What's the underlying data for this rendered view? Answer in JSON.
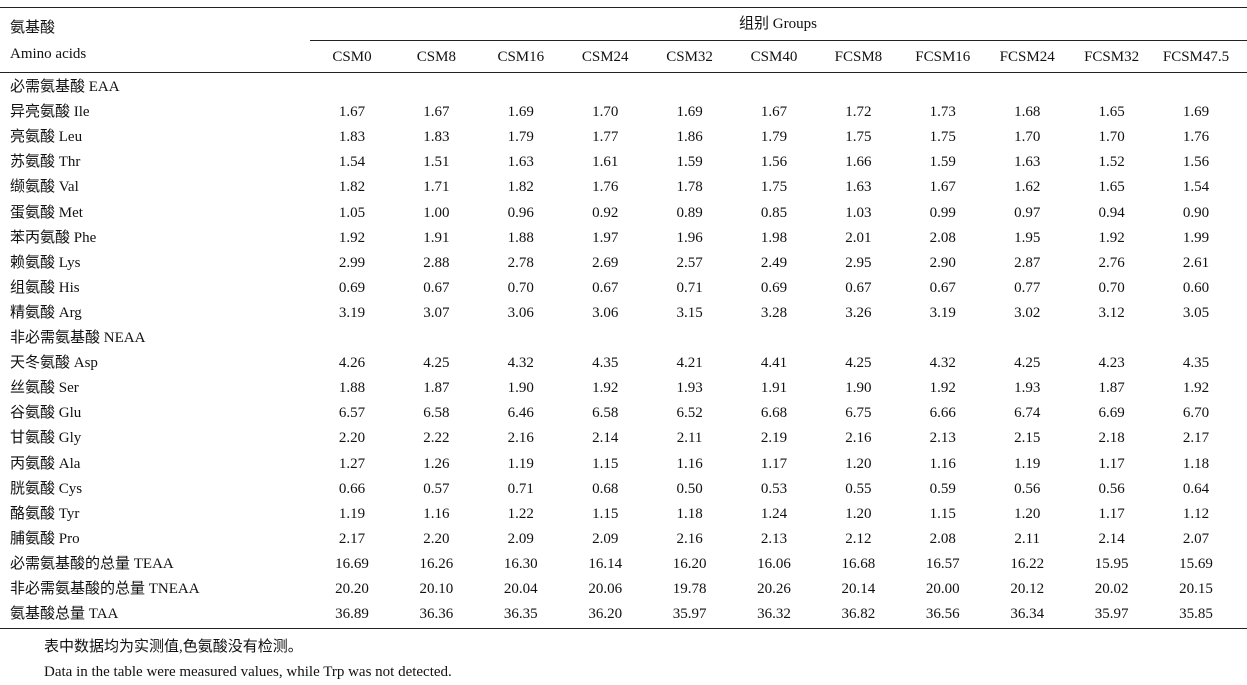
{
  "table": {
    "header": {
      "row_label": [
        "氨基酸",
        "Amino acids"
      ],
      "group": "组别 Groups",
      "columns": [
        "CSM0",
        "CSM8",
        "CSM16",
        "CSM24",
        "CSM32",
        "CSM40",
        "FCSM8",
        "FCSM16",
        "FCSM24",
        "FCSM32",
        "FCSM47.5"
      ]
    },
    "rows": [
      {
        "label": "必需氨基酸 EAA"
      },
      {
        "label": "异亮氨酸 Ile",
        "values": [
          "1.67",
          "1.67",
          "1.69",
          "1.70",
          "1.69",
          "1.67",
          "1.72",
          "1.73",
          "1.68",
          "1.65",
          "1.69"
        ]
      },
      {
        "label": "亮氨酸 Leu",
        "values": [
          "1.83",
          "1.83",
          "1.79",
          "1.77",
          "1.86",
          "1.79",
          "1.75",
          "1.75",
          "1.70",
          "1.70",
          "1.76"
        ]
      },
      {
        "label": "苏氨酸 Thr",
        "values": [
          "1.54",
          "1.51",
          "1.63",
          "1.61",
          "1.59",
          "1.56",
          "1.66",
          "1.59",
          "1.63",
          "1.52",
          "1.56"
        ]
      },
      {
        "label": "缬氨酸 Val",
        "values": [
          "1.82",
          "1.71",
          "1.82",
          "1.76",
          "1.78",
          "1.75",
          "1.63",
          "1.67",
          "1.62",
          "1.65",
          "1.54"
        ]
      },
      {
        "label": "蛋氨酸 Met",
        "values": [
          "1.05",
          "1.00",
          "0.96",
          "0.92",
          "0.89",
          "0.85",
          "1.03",
          "0.99",
          "0.97",
          "0.94",
          "0.90"
        ]
      },
      {
        "label": "苯丙氨酸 Phe",
        "values": [
          "1.92",
          "1.91",
          "1.88",
          "1.97",
          "1.96",
          "1.98",
          "2.01",
          "2.08",
          "1.95",
          "1.92",
          "1.99"
        ]
      },
      {
        "label": "赖氨酸 Lys",
        "values": [
          "2.99",
          "2.88",
          "2.78",
          "2.69",
          "2.57",
          "2.49",
          "2.95",
          "2.90",
          "2.87",
          "2.76",
          "2.61"
        ]
      },
      {
        "label": "组氨酸 His",
        "values": [
          "0.69",
          "0.67",
          "0.70",
          "0.67",
          "0.71",
          "0.69",
          "0.67",
          "0.67",
          "0.77",
          "0.70",
          "0.60"
        ]
      },
      {
        "label": "精氨酸 Arg",
        "values": [
          "3.19",
          "3.07",
          "3.06",
          "3.06",
          "3.15",
          "3.28",
          "3.26",
          "3.19",
          "3.02",
          "3.12",
          "3.05"
        ]
      },
      {
        "label": "非必需氨基酸 NEAA"
      },
      {
        "label": "天冬氨酸 Asp",
        "values": [
          "4.26",
          "4.25",
          "4.32",
          "4.35",
          "4.21",
          "4.41",
          "4.25",
          "4.32",
          "4.25",
          "4.23",
          "4.35"
        ]
      },
      {
        "label": "丝氨酸 Ser",
        "values": [
          "1.88",
          "1.87",
          "1.90",
          "1.92",
          "1.93",
          "1.91",
          "1.90",
          "1.92",
          "1.93",
          "1.87",
          "1.92"
        ]
      },
      {
        "label": "谷氨酸 Glu",
        "values": [
          "6.57",
          "6.58",
          "6.46",
          "6.58",
          "6.52",
          "6.68",
          "6.75",
          "6.66",
          "6.74",
          "6.69",
          "6.70"
        ]
      },
      {
        "label": "甘氨酸 Gly",
        "values": [
          "2.20",
          "2.22",
          "2.16",
          "2.14",
          "2.11",
          "2.19",
          "2.16",
          "2.13",
          "2.15",
          "2.18",
          "2.17"
        ]
      },
      {
        "label": "丙氨酸 Ala",
        "values": [
          "1.27",
          "1.26",
          "1.19",
          "1.15",
          "1.16",
          "1.17",
          "1.20",
          "1.16",
          "1.19",
          "1.17",
          "1.18"
        ]
      },
      {
        "label": "胱氨酸 Cys",
        "values": [
          "0.66",
          "0.57",
          "0.71",
          "0.68",
          "0.50",
          "0.53",
          "0.55",
          "0.59",
          "0.56",
          "0.56",
          "0.64"
        ]
      },
      {
        "label": "酪氨酸 Tyr",
        "values": [
          "1.19",
          "1.16",
          "1.22",
          "1.15",
          "1.18",
          "1.24",
          "1.20",
          "1.15",
          "1.20",
          "1.17",
          "1.12"
        ]
      },
      {
        "label": "脯氨酸 Pro",
        "values": [
          "2.17",
          "2.20",
          "2.09",
          "2.09",
          "2.16",
          "2.13",
          "2.12",
          "2.08",
          "2.11",
          "2.14",
          "2.07"
        ]
      },
      {
        "label": "必需氨基酸的总量 TEAA",
        "values": [
          "16.69",
          "16.26",
          "16.30",
          "16.14",
          "16.20",
          "16.06",
          "16.68",
          "16.57",
          "16.22",
          "15.95",
          "15.69"
        ]
      },
      {
        "label": "非必需氨基酸的总量 TNEAA",
        "values": [
          "20.20",
          "20.10",
          "20.04",
          "20.06",
          "19.78",
          "20.26",
          "20.14",
          "20.00",
          "20.12",
          "20.02",
          "20.15"
        ]
      },
      {
        "label": "氨基酸总量 TAA",
        "values": [
          "36.89",
          "36.36",
          "36.35",
          "36.20",
          "35.97",
          "36.32",
          "36.82",
          "36.56",
          "36.34",
          "35.97",
          "35.85"
        ]
      }
    ],
    "notes": [
      "表中数据均为实测值,色氨酸没有检测。",
      "Data in the table were measured values, while Trp was not detected."
    ]
  }
}
